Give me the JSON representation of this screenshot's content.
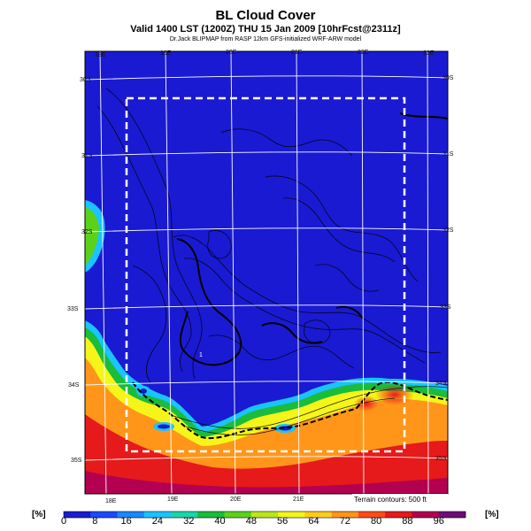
{
  "header": {
    "title": "BL Cloud Cover",
    "subtitle": "Valid 1400 LST (1200Z) THU 15 Jan 2009 [10hrFcst@2311z]",
    "credit": "Dr.Jack BLIPMAP from RASP 12km GFS-initialized WRF-ARW model"
  },
  "map": {
    "top_lon_labels": [
      "18E",
      "19E",
      "20E",
      "21E",
      "22E",
      "23E"
    ],
    "bottom_lon_labels": [
      "18E",
      "19E",
      "20E",
      "21E"
    ],
    "left_lat_labels": [
      "30S",
      "31S",
      "32S",
      "33S",
      "34S",
      "35S"
    ],
    "right_lat_labels": [
      "30S",
      "31S",
      "32S",
      "33S",
      "34S",
      "35S"
    ],
    "terrain_note": "Terrain contours: 500 ft",
    "contour_label": "1"
  },
  "colorbar": {
    "unit_label": "[%]",
    "tick_labels": [
      "0",
      "8",
      "16",
      "24",
      "32",
      "40",
      "48",
      "56",
      "64",
      "72",
      "80",
      "88",
      "96"
    ],
    "colors": [
      "#1a1ad2",
      "#1a4bff",
      "#1a87ff",
      "#19c4ff",
      "#19d6a8",
      "#1abc3c",
      "#5ad21a",
      "#b9e61a",
      "#f5f51a",
      "#ffcc1a",
      "#ff961a",
      "#ff4b1a",
      "#e61a1a",
      "#b40050",
      "#6e0a78"
    ]
  }
}
